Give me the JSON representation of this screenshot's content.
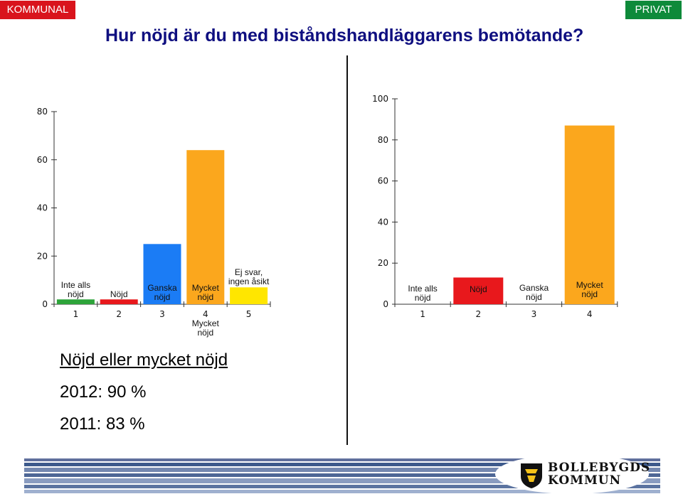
{
  "header": {
    "left_tag": "KOMMUNAL",
    "right_tag": "PRIVAT",
    "title": "Hur nöjd är du med biståndshandläggarens bemötande?"
  },
  "summary": {
    "heading": "Nöjd eller mycket nöjd",
    "lines": [
      "2012: 90 %",
      "2011: 83 %"
    ]
  },
  "logo": {
    "line1": "BOLLEBYGDS",
    "line2": "KOMMUN"
  },
  "colors": {
    "green": "#2da43a",
    "red": "#e8181c",
    "blue": "#1b7cf5",
    "orange": "#fba71d",
    "yellow": "#ffe600"
  },
  "chart_data": [
    {
      "type": "bar",
      "categories": [
        "1",
        "2",
        "3",
        "4",
        "5"
      ],
      "values": [
        2,
        2,
        25,
        64,
        7
      ],
      "colors": [
        "#2da43a",
        "#e8181c",
        "#1b7cf5",
        "#fba71d",
        "#ffe600"
      ],
      "bar_labels": [
        [
          "Inte alls",
          "nöjd"
        ],
        [
          "Nöjd"
        ],
        [
          "Ganska",
          "nöjd"
        ],
        [
          "Mycket",
          "nöjd"
        ],
        [
          "Ej svar,",
          "ingen åsikt"
        ]
      ],
      "extra_label": [
        "Mycket",
        "nöjd"
      ],
      "yticks": [
        0,
        20,
        40,
        60,
        80
      ],
      "ylim": [
        0,
        80
      ]
    },
    {
      "type": "bar",
      "categories": [
        "1",
        "2",
        "3",
        "4"
      ],
      "values": [
        0,
        13,
        0,
        87
      ],
      "colors": [
        "#2da43a",
        "#e8181c",
        "#1b7cf5",
        "#fba71d"
      ],
      "bar_labels": [
        [
          "Inte alls",
          "nöjd"
        ],
        [
          "Nöjd"
        ],
        [
          "Ganska",
          "nöjd"
        ],
        [
          "Mycket",
          "nöjd"
        ]
      ],
      "yticks": [
        0,
        20,
        40,
        60,
        80,
        100
      ],
      "ylim": [
        0,
        100
      ]
    }
  ]
}
